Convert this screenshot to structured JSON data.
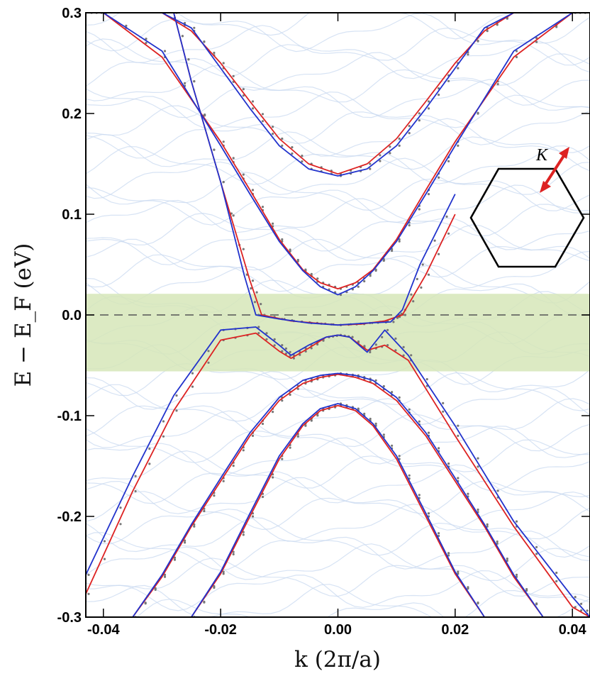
{
  "chart_data": {
    "type": "line",
    "title": "",
    "xlabel": "k (2π/a)",
    "ylabel": "E − E_F (eV)",
    "xlim": [
      -0.043,
      0.043
    ],
    "ylim": [
      -0.3,
      0.3
    ],
    "x_ticks": [
      "-0.04",
      "-0.02",
      "0.00",
      "0.02",
      "0.04"
    ],
    "y_ticks": [
      "-0.3",
      "-0.2",
      "-0.1",
      "0.0",
      "0.1",
      "0.2",
      "0.3"
    ],
    "fermi_level": 0.0,
    "shaded_energy_window": [
      -0.056,
      0.021
    ],
    "grid": false,
    "colors": {
      "red": "#dd2222",
      "blue": "#2233cc",
      "dots": "#777777",
      "background_bands": "#c9d9f0",
      "shaded_window": "#d6e6b8",
      "inset_arrow": "#dd2222"
    },
    "inset_label": "K",
    "series": [
      {
        "color": "red",
        "x": [
          0.0,
          0.005,
          0.01,
          0.015,
          0.02,
          0.025,
          0.03
        ],
        "y": [
          0.14,
          0.15,
          0.175,
          0.212,
          0.25,
          0.282,
          0.3
        ],
        "symmetric": true
      },
      {
        "color": "blue",
        "x": [
          0.0,
          0.005,
          0.01,
          0.015,
          0.02,
          0.025,
          0.03
        ],
        "y": [
          0.138,
          0.145,
          0.168,
          0.205,
          0.245,
          0.285,
          0.3
        ],
        "symmetric": true
      },
      {
        "color": "red",
        "x": [
          0.0,
          0.003,
          0.006,
          0.01,
          0.015,
          0.02,
          0.03,
          0.04,
          0.0425
        ],
        "y": [
          0.026,
          0.032,
          0.045,
          0.075,
          0.124,
          0.172,
          0.256,
          0.3,
          0.3
        ],
        "symmetric": true
      },
      {
        "color": "blue",
        "x": [
          0.0,
          0.003,
          0.006,
          0.01,
          0.015,
          0.02,
          0.03,
          0.04,
          0.0425
        ],
        "y": [
          0.02,
          0.028,
          0.044,
          0.073,
          0.12,
          0.168,
          0.262,
          0.3,
          0.3
        ],
        "symmetric": true
      },
      {
        "color": "red",
        "x": [
          -0.028,
          -0.025,
          -0.02,
          -0.015,
          -0.013,
          -0.008,
          -0.004,
          0.0,
          0.004,
          0.008,
          0.011,
          0.015,
          0.02
        ],
        "y": [
          0.3,
          0.232,
          0.132,
          0.034,
          0.0,
          -0.006,
          -0.008,
          -0.01,
          -0.009,
          -0.006,
          0.0,
          0.04,
          0.1
        ]
      },
      {
        "color": "blue",
        "x": [
          -0.028,
          -0.025,
          -0.02,
          -0.016,
          -0.014,
          -0.01,
          -0.005,
          0.0,
          0.005,
          0.009,
          0.011,
          0.014,
          0.02
        ],
        "y": [
          0.3,
          0.232,
          0.132,
          0.04,
          0.0,
          -0.004,
          -0.008,
          -0.01,
          -0.008,
          -0.007,
          0.005,
          0.05,
          0.12
        ]
      },
      {
        "color": "red",
        "x": [
          -0.043,
          -0.035,
          -0.028,
          -0.02,
          -0.014,
          -0.01,
          -0.008,
          -0.005,
          -0.002,
          0.0,
          0.002,
          0.005,
          0.008,
          0.012,
          0.02,
          0.03,
          0.04,
          0.043
        ],
        "y": [
          -0.277,
          -0.175,
          -0.095,
          -0.025,
          -0.018,
          -0.036,
          -0.043,
          -0.033,
          -0.022,
          -0.02,
          -0.022,
          -0.035,
          -0.03,
          -0.045,
          -0.12,
          -0.21,
          -0.29,
          -0.3
        ]
      },
      {
        "color": "blue",
        "x": [
          -0.043,
          -0.035,
          -0.028,
          -0.02,
          -0.014,
          -0.01,
          -0.008,
          -0.005,
          -0.002,
          0.0,
          0.002,
          0.005,
          0.008,
          0.012,
          0.02,
          0.03,
          0.04,
          0.043
        ],
        "y": [
          -0.258,
          -0.16,
          -0.08,
          -0.015,
          -0.012,
          -0.03,
          -0.04,
          -0.03,
          -0.022,
          -0.02,
          -0.022,
          -0.037,
          -0.015,
          -0.04,
          -0.11,
          -0.205,
          -0.28,
          -0.3
        ]
      },
      {
        "color": "red",
        "x": [
          0.0,
          0.003,
          0.006,
          0.01,
          0.015,
          0.02,
          0.025,
          0.03,
          0.035
        ],
        "y": [
          -0.059,
          -0.062,
          -0.068,
          -0.085,
          -0.12,
          -0.165,
          -0.21,
          -0.26,
          -0.3
        ],
        "symmetric": true
      },
      {
        "color": "blue",
        "x": [
          0.0,
          0.003,
          0.006,
          0.01,
          0.015,
          0.02,
          0.025,
          0.03,
          0.035
        ],
        "y": [
          -0.058,
          -0.06,
          -0.065,
          -0.082,
          -0.117,
          -0.162,
          -0.208,
          -0.258,
          -0.3
        ],
        "symmetric": true
      },
      {
        "color": "red",
        "x": [
          0.0,
          0.003,
          0.006,
          0.01,
          0.015,
          0.02,
          0.025
        ],
        "y": [
          -0.09,
          -0.095,
          -0.11,
          -0.143,
          -0.2,
          -0.257,
          -0.3
        ],
        "symmetric": true
      },
      {
        "color": "blue",
        "x": [
          0.0,
          0.003,
          0.006,
          0.01,
          0.015,
          0.02,
          0.025
        ],
        "y": [
          -0.088,
          -0.093,
          -0.108,
          -0.14,
          -0.197,
          -0.255,
          -0.3
        ],
        "symmetric": true
      }
    ]
  }
}
